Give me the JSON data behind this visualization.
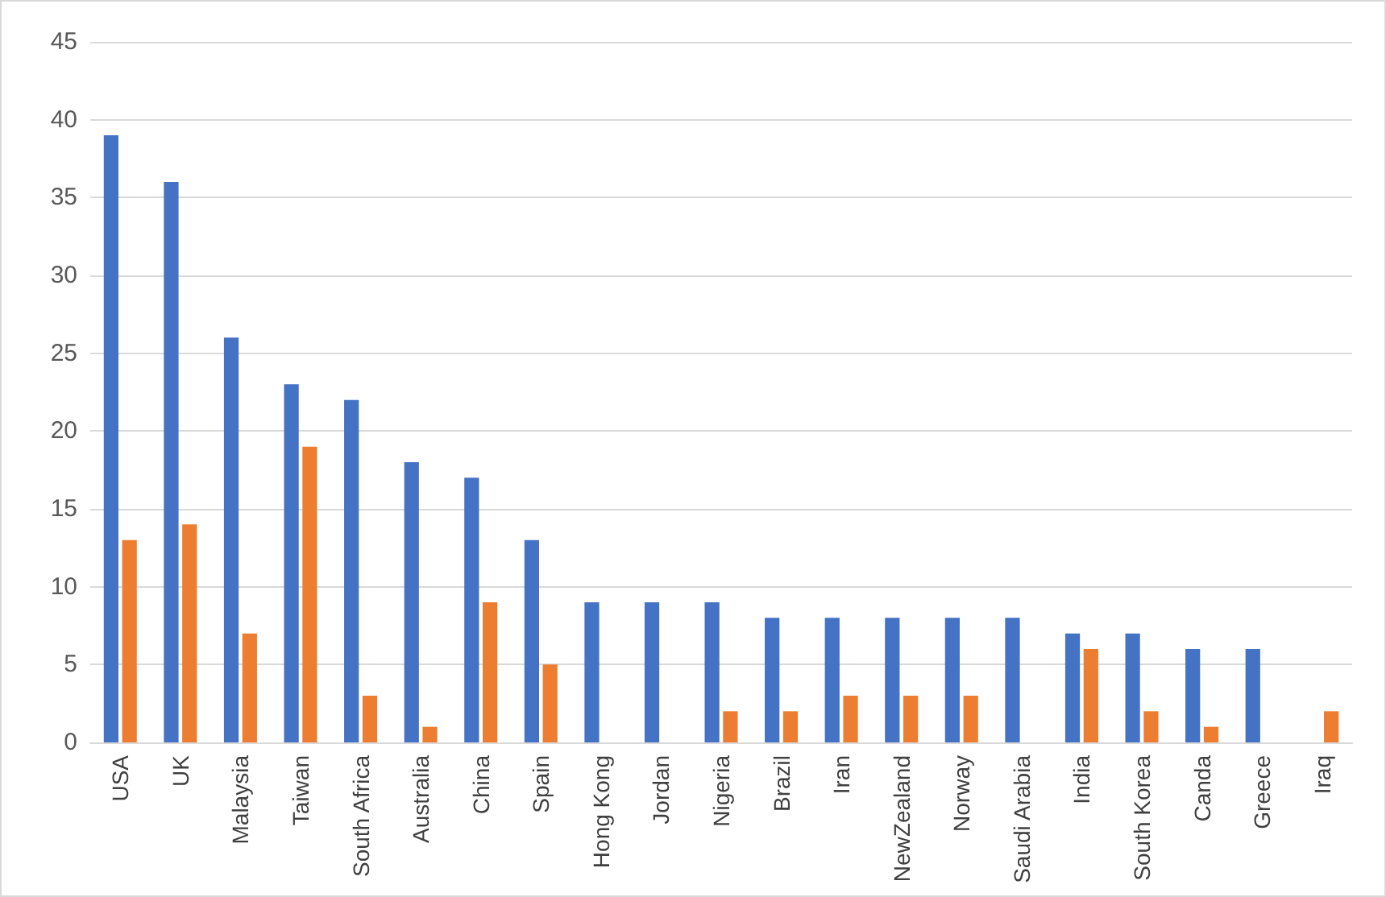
{
  "chart_data": {
    "type": "bar",
    "categories": [
      "USA",
      "UK",
      "Malaysia",
      "Taiwan",
      "South Africa",
      "Australia",
      "China",
      "Spain",
      "Hong Kong",
      "Jordan",
      "Nigeria",
      "Brazil",
      "Iran",
      "NewZealand",
      "Norway",
      "Saudi Arabia",
      "India",
      "South Korea",
      "Canda",
      "Greece",
      "Iraq"
    ],
    "series": [
      {
        "color": "#4472c4",
        "values": [
          39,
          36,
          26,
          23,
          22,
          18,
          17,
          13,
          9,
          9,
          9,
          8,
          8,
          8,
          8,
          8,
          7,
          7,
          6,
          6,
          0
        ]
      },
      {
        "color": "#ed7d31",
        "values": [
          13,
          14,
          7,
          19,
          3,
          1,
          9,
          5,
          0,
          0,
          2,
          2,
          3,
          3,
          3,
          0,
          6,
          2,
          1,
          0,
          2
        ]
      }
    ],
    "ylim": [
      0,
      45
    ],
    "yticks": [
      0,
      5,
      10,
      15,
      20,
      25,
      30,
      35,
      40,
      45
    ],
    "grid": "y"
  }
}
